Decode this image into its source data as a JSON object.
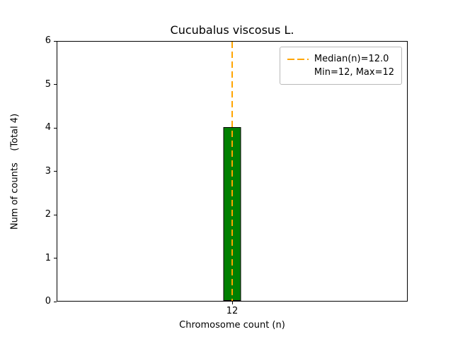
{
  "chart_data": {
    "type": "bar",
    "title": "Cucubalus viscosus L.",
    "xlabel": "Chromosome count (n)",
    "ylabel": "Num of counts    (Total 4)",
    "categories": [
      12
    ],
    "values": [
      4
    ],
    "total_counts": 4,
    "ylim": [
      0,
      6
    ],
    "yticks": [
      0,
      1,
      2,
      3,
      4,
      5,
      6
    ],
    "xticks": [
      "12"
    ],
    "grid": false,
    "bar_color": "#008000",
    "bar_edge_color": "#000000",
    "median_line": {
      "x": 12,
      "value": 12.0,
      "color": "#FFA500",
      "style": "dashed"
    },
    "legend": {
      "position": "upper-right",
      "entries": [
        {
          "label": "Median(n)=12.0",
          "sample": "dashed-line",
          "color": "#FFA500"
        },
        {
          "label": "Min=12, Max=12",
          "sample": "none"
        }
      ]
    }
  }
}
